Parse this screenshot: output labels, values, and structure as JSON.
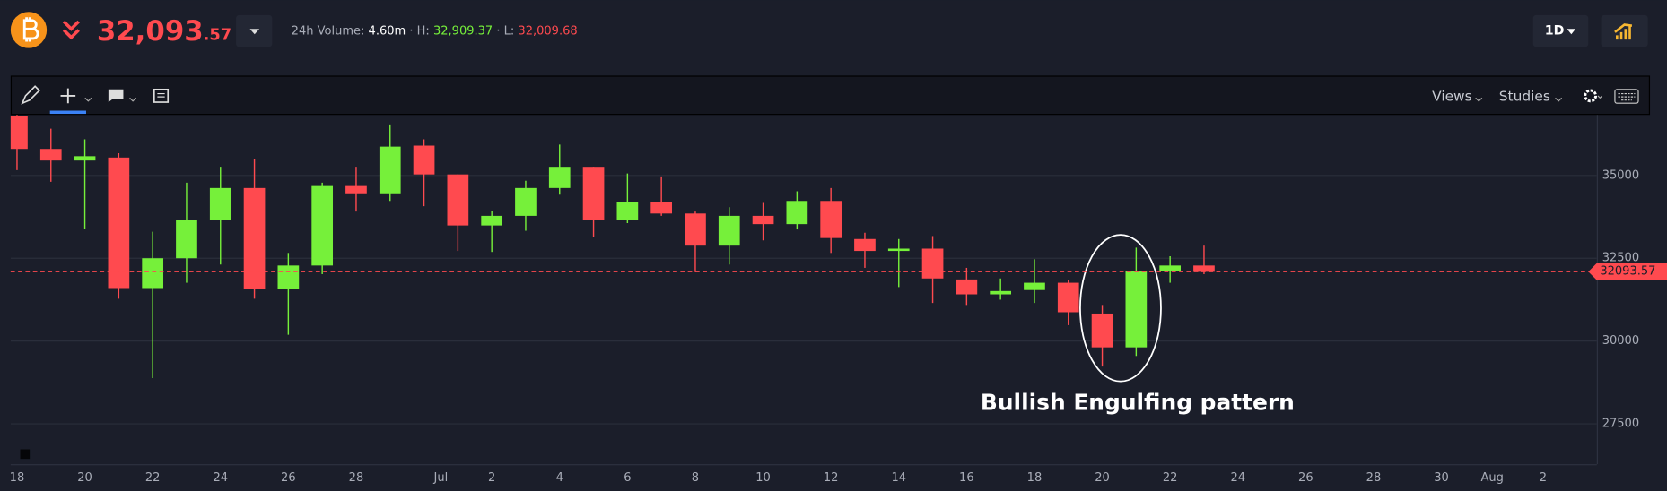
{
  "header": {
    "price_main": "32,093",
    "price_decimals": ".57",
    "volume_label": "24h Volume:",
    "volume": "4.60m",
    "high_label": "· H:",
    "high": "32,909.37",
    "low_label": "· L:",
    "low": "32,009.68",
    "interval": "1D"
  },
  "toolbar": {
    "views": "Views",
    "studies": "Studies"
  },
  "chart_data": {
    "type": "candlestick",
    "annotation": "Bullish Engulfing pattern",
    "x": [
      "06-18",
      "06-19",
      "06-20",
      "06-21",
      "06-22",
      "06-23",
      "06-24",
      "06-25",
      "06-26",
      "06-27",
      "06-28",
      "06-29",
      "06-30",
      "07-01",
      "07-02",
      "07-03",
      "07-04",
      "07-05",
      "07-06",
      "07-07",
      "07-08",
      "07-09",
      "07-10",
      "07-11",
      "07-12",
      "07-13",
      "07-14",
      "07-15",
      "07-16",
      "07-17",
      "07-18",
      "07-19",
      "07-20",
      "07-21",
      "07-22",
      "07-23"
    ],
    "open": [
      36800,
      35800,
      35450,
      35540,
      31600,
      32500,
      33650,
      34620,
      31570,
      32280,
      34680,
      34460,
      35900,
      35030,
      33490,
      33780,
      34620,
      35260,
      33650,
      34200,
      33850,
      32880,
      33780,
      33530,
      34230,
      33080,
      32720,
      32790,
      31860,
      31410,
      31540,
      31760,
      30830,
      29810,
      32120,
      32280
    ],
    "high": [
      37000,
      36410,
      36090,
      35670,
      33300,
      34780,
      35260,
      35480,
      32660,
      34780,
      35260,
      36540,
      36090,
      35030,
      33940,
      34840,
      35930,
      35260,
      35060,
      34970,
      33910,
      34040,
      34170,
      34520,
      34620,
      33270,
      33080,
      33170,
      32210,
      31890,
      32470,
      31830,
      31090,
      32820,
      32560,
      32880
    ],
    "low": [
      35160,
      34810,
      33370,
      31280,
      28880,
      31760,
      32310,
      31280,
      30190,
      32020,
      33910,
      34230,
      34070,
      32720,
      32690,
      33330,
      34420,
      33140,
      33560,
      33780,
      32080,
      32310,
      33040,
      33370,
      32660,
      32210,
      31630,
      31150,
      31090,
      31250,
      31150,
      30480,
      29230,
      29550,
      31760,
      32020
    ],
    "close": [
      35800,
      35450,
      35580,
      31600,
      32500,
      33650,
      34620,
      31570,
      32280,
      34680,
      34460,
      35870,
      35030,
      33490,
      33780,
      34620,
      35260,
      33650,
      34200,
      33850,
      32880,
      33780,
      33530,
      34230,
      33110,
      32720,
      32790,
      31890,
      31410,
      31510,
      31760,
      30870,
      29810,
      32120,
      32280,
      32090
    ],
    "up_color": "#76f03a",
    "down_color": "#ff4a4f",
    "last_price": 32093.57,
    "ylim": [
      26282,
      36827
    ],
    "yticks": [
      27500,
      30000,
      32500,
      35000
    ],
    "grid": true,
    "xticks": [
      {
        "value": "06-18",
        "label": "18"
      },
      {
        "value": "06-20",
        "label": "20"
      },
      {
        "value": "06-22",
        "label": "22"
      },
      {
        "value": "06-24",
        "label": "24"
      },
      {
        "value": "06-26",
        "label": "26"
      },
      {
        "value": "06-28",
        "label": "28"
      },
      {
        "value": "07-01",
        "label": "Jul"
      },
      {
        "value": "07-02",
        "label": "2"
      },
      {
        "value": "07-04",
        "label": "4"
      },
      {
        "value": "07-06",
        "label": "6"
      },
      {
        "value": "07-08",
        "label": "8"
      },
      {
        "value": "07-10",
        "label": "10"
      },
      {
        "value": "07-12",
        "label": "12"
      },
      {
        "value": "07-14",
        "label": "14"
      },
      {
        "value": "07-16",
        "label": "16"
      },
      {
        "value": "07-18",
        "label": "18"
      },
      {
        "value": "07-20",
        "label": "20"
      },
      {
        "value": "07-22",
        "label": "22"
      },
      {
        "value": "07-24",
        "label": "24"
      },
      {
        "value": "07-26",
        "label": "26"
      },
      {
        "value": "07-28",
        "label": "28"
      },
      {
        "value": "07-30",
        "label": "30"
      },
      {
        "value": "08-01",
        "label": "Aug"
      },
      {
        "value": "08-02",
        "label": "2"
      }
    ]
  }
}
